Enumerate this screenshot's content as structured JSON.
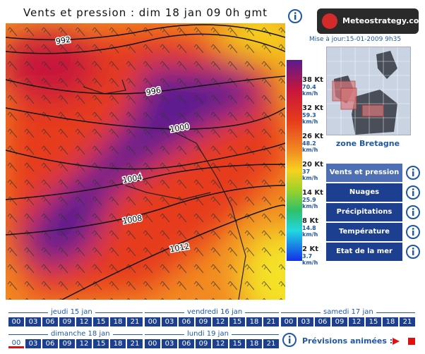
{
  "header": {
    "title": "Vents et pression : dim 18 jan 09 0h gmt",
    "logo": "Meteostrategy.com",
    "update": "Mise à jour:15-01-2009 9h35"
  },
  "map": {
    "isobars": [
      "992",
      "996",
      "1000",
      "1004",
      "1008",
      "1012"
    ]
  },
  "legend": [
    {
      "kt": "38 Kt",
      "kmh": "70.4 km/h"
    },
    {
      "kt": "32 Kt",
      "kmh": "59.3 km/h"
    },
    {
      "kt": "26 Kt",
      "kmh": "48.2 km/h"
    },
    {
      "kt": "20 Kt",
      "kmh": "37 km/h"
    },
    {
      "kt": "14 Kt",
      "kmh": "25.9 km/h"
    },
    {
      "kt": "8 Kt",
      "kmh": "14.8 km/h"
    },
    {
      "kt": "2 Kt",
      "kmh": "3.7 km/h"
    }
  ],
  "zone": "zone Bretagne",
  "menu": [
    "Vents et pression",
    "Nuages",
    "Précipitations",
    "Température",
    "Etat de la mer"
  ],
  "timeline": {
    "days": [
      "jeudi 15 jan",
      "vendredi 16 jan",
      "samedi 17 jan",
      "dimanche 18 jan",
      "lundi 19 jan"
    ],
    "hours": [
      "00",
      "03",
      "06",
      "09",
      "12",
      "15",
      "18",
      "21"
    ],
    "animation": "Prévisions animées :"
  }
}
